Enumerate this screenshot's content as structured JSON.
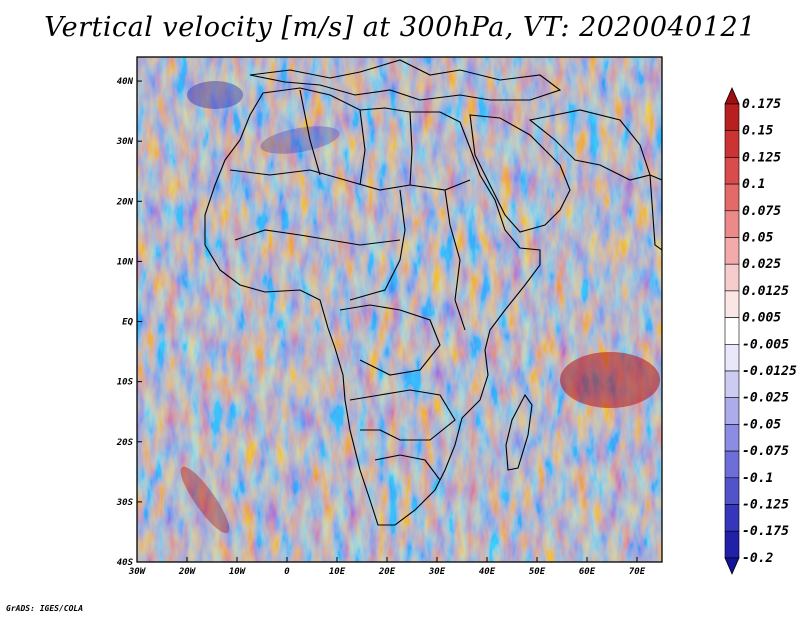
{
  "title": "Vertical velocity [m/s] at 300hPa, VT: 2020040121",
  "credit": "GrADS: IGES/COLA",
  "map": {
    "lon_ticks": [
      "30W",
      "20W",
      "10W",
      "0",
      "10E",
      "20E",
      "30E",
      "40E",
      "50E",
      "60E",
      "70E"
    ],
    "lat_ticks": [
      "40N",
      "30N",
      "20N",
      "10N",
      "EQ",
      "10S",
      "20S",
      "30S",
      "40S"
    ],
    "lon_range": [
      -30,
      75
    ],
    "lat_range": [
      -40,
      44
    ]
  },
  "colorbar": {
    "labels": [
      "0.175",
      "0.15",
      "0.125",
      "0.1",
      "0.075",
      "0.05",
      "0.025",
      "0.0125",
      "0.005",
      "-0.005",
      "-0.0125",
      "-0.025",
      "-0.05",
      "-0.075",
      "-0.1",
      "-0.125",
      "-0.175",
      "-0.2"
    ],
    "colors": [
      "#a01010",
      "#b82020",
      "#cc3434",
      "#da4c4c",
      "#e46a6a",
      "#ec8a8a",
      "#f2aaaa",
      "#f7cccc",
      "#fbe6e6",
      "#ffffff",
      "#e8e8fa",
      "#ccccf2",
      "#acacea",
      "#8c8ce2",
      "#6e6ed8",
      "#5252ca",
      "#3636bc",
      "#2020a8",
      "#12129a"
    ]
  }
}
